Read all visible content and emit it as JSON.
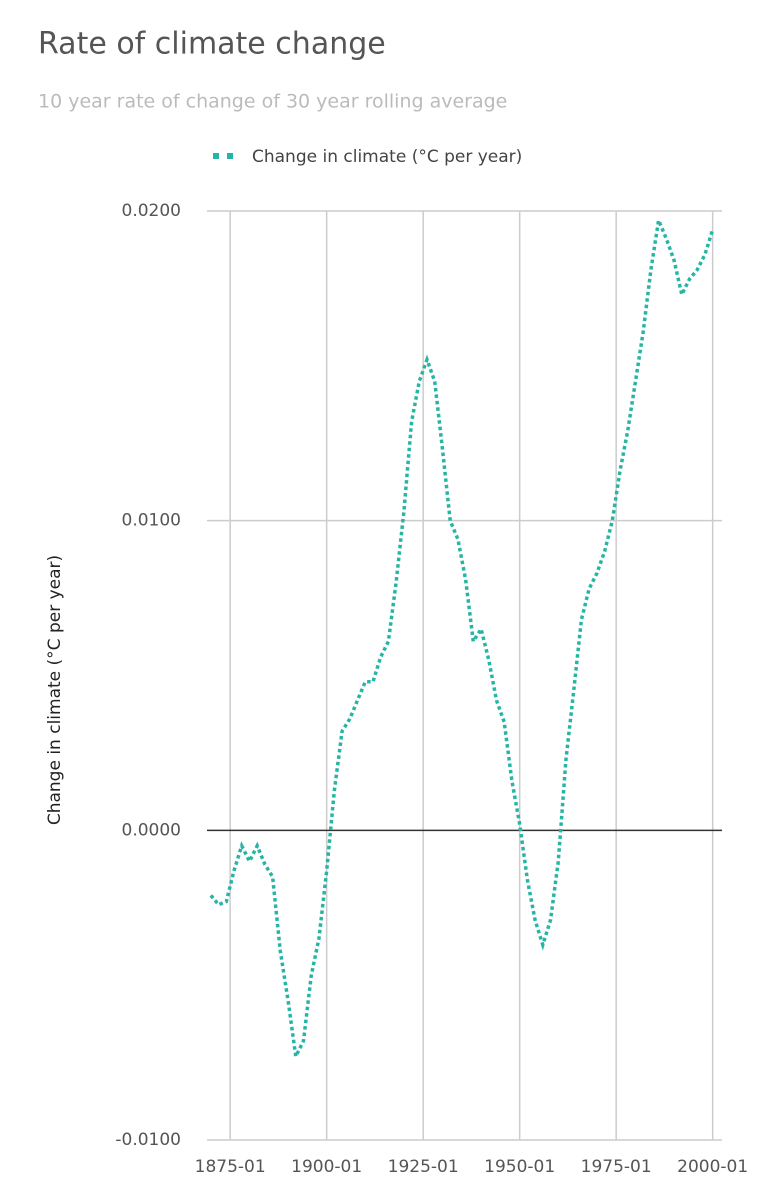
{
  "chart_data": {
    "type": "line",
    "title": "Rate of climate change",
    "subtitle": "10 year rate of change of 30 year rolling average",
    "y_label": "Change in climate (°C per year)",
    "x": [
      "1870-01",
      "1872-01",
      "1874-01",
      "1876-01",
      "1878-01",
      "1880-01",
      "1882-01",
      "1884-01",
      "1886-01",
      "1888-01",
      "1890-01",
      "1892-01",
      "1894-01",
      "1896-01",
      "1898-01",
      "1900-01",
      "1902-01",
      "1904-01",
      "1906-01",
      "1908-01",
      "1910-01",
      "1912-01",
      "1914-01",
      "1916-01",
      "1918-01",
      "1920-01",
      "1922-01",
      "1924-01",
      "1926-01",
      "1928-01",
      "1930-01",
      "1932-01",
      "1934-01",
      "1936-01",
      "1938-01",
      "1940-01",
      "1942-01",
      "1944-01",
      "1946-01",
      "1948-01",
      "1950-01",
      "1952-01",
      "1954-01",
      "1956-01",
      "1958-01",
      "1960-01",
      "1962-01",
      "1964-01",
      "1966-01",
      "1968-01",
      "1970-01",
      "1972-01",
      "1974-01",
      "1976-01",
      "1978-01",
      "1980-01",
      "1982-01",
      "1984-01",
      "1986-01",
      "1988-01",
      "1990-01",
      "1992-01",
      "1994-01",
      "1996-01",
      "1998-01",
      "2000-01"
    ],
    "series": [
      {
        "name": "Change in climate (°C per year)",
        "color": "#26b5a5",
        "values": [
          -0.0021,
          -0.0024,
          -0.0023,
          -0.0013,
          -0.0005,
          -0.001,
          -0.0005,
          -0.0011,
          -0.0015,
          -0.0039,
          -0.0055,
          -0.0073,
          -0.0068,
          -0.0047,
          -0.0035,
          -0.0013,
          0.0013,
          0.0032,
          0.0036,
          0.0042,
          0.0048,
          0.0048,
          0.0056,
          0.0061,
          0.008,
          0.0103,
          0.0132,
          0.0145,
          0.0152,
          0.0145,
          0.0123,
          0.01,
          0.0094,
          0.0081,
          0.0061,
          0.0065,
          0.0055,
          0.0042,
          0.0035,
          0.0016,
          0.0002,
          -0.0016,
          -0.0029,
          -0.0037,
          -0.0029,
          -0.001,
          0.0023,
          0.0045,
          0.0068,
          0.0078,
          0.0083,
          0.009,
          0.01,
          0.0116,
          0.0129,
          0.0145,
          0.0161,
          0.0181,
          0.0197,
          0.0191,
          0.0184,
          0.0173,
          0.0178,
          0.0181,
          0.0186,
          0.0194
        ]
      }
    ],
    "xlim": [
      "1869-01",
      "2002-06"
    ],
    "xticks": [
      "1875-01",
      "1900-01",
      "1925-01",
      "1950-01",
      "1975-01",
      "2000-01"
    ],
    "ylim": [
      -0.01,
      0.02
    ],
    "yticks": [
      {
        "value": -0.01,
        "label": "-0.0100"
      },
      {
        "value": 0,
        "label": "0.0000"
      },
      {
        "value": 0.01,
        "label": "0.0100"
      },
      {
        "value": 0.02,
        "label": "0.0200"
      }
    ],
    "grid": true,
    "legend": "top"
  }
}
